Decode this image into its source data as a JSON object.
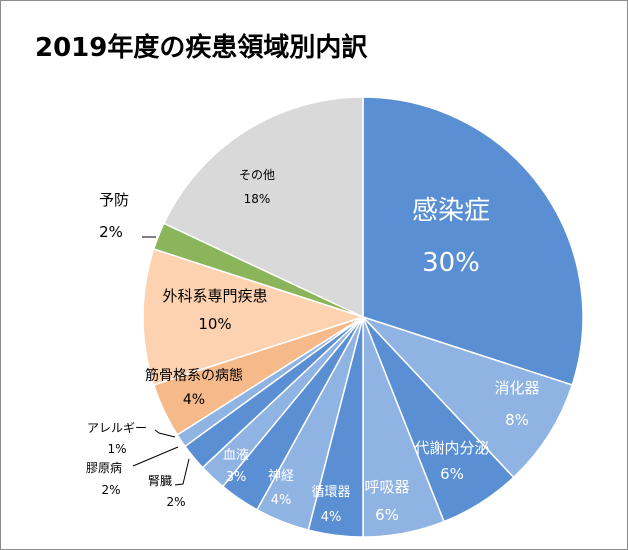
{
  "chart_data": {
    "type": "pie",
    "title": "2019年度の疾患領域別内訳",
    "unit": "%",
    "slices": [
      {
        "name": "感染症",
        "value": 30,
        "label": "30%",
        "color": "#5a8fd4",
        "text_color": "#ffffff"
      },
      {
        "name": "消化器",
        "value": 8,
        "label": "8%",
        "color": "#8fb3e3",
        "text_color": "#ffffff"
      },
      {
        "name": "代謝内分泌",
        "value": 6,
        "label": "6%",
        "color": "#5a8fd4",
        "text_color": "#ffffff"
      },
      {
        "name": "呼吸器",
        "value": 6,
        "label": "6%",
        "color": "#8fb3e3",
        "text_color": "#ffffff"
      },
      {
        "name": "循環器",
        "value": 4,
        "label": "4%",
        "color": "#5a8fd4",
        "text_color": "#ffffff"
      },
      {
        "name": "神経",
        "value": 4,
        "label": "4%",
        "color": "#8fb3e3",
        "text_color": "#ffffff"
      },
      {
        "name": "血液",
        "value": 3,
        "label": "3%",
        "color": "#5a8fd4",
        "text_color": "#ffffff"
      },
      {
        "name": "腎臓",
        "value": 2,
        "label": "2%",
        "color": "#8fb3e3",
        "text_color": "#000000"
      },
      {
        "name": "膠原病",
        "value": 2,
        "label": "2%",
        "color": "#5a8fd4",
        "text_color": "#000000"
      },
      {
        "name": "アレルギー",
        "value": 1,
        "label": "1%",
        "color": "#8fb3e3",
        "text_color": "#000000"
      },
      {
        "name": "筋骨格系の病態",
        "value": 4,
        "label": "4%",
        "color": "#f6b98a",
        "text_color": "#000000"
      },
      {
        "name": "外科系専門疾患",
        "value": 10,
        "label": "10%",
        "color": "#fcd2b0",
        "text_color": "#000000"
      },
      {
        "name": "予防",
        "value": 2,
        "label": "2%",
        "color": "#8bb55a",
        "text_color": "#000000"
      },
      {
        "name": "その他",
        "value": 18,
        "label": "18%",
        "color": "#d9d9d9",
        "text_color": "#000000"
      }
    ]
  }
}
